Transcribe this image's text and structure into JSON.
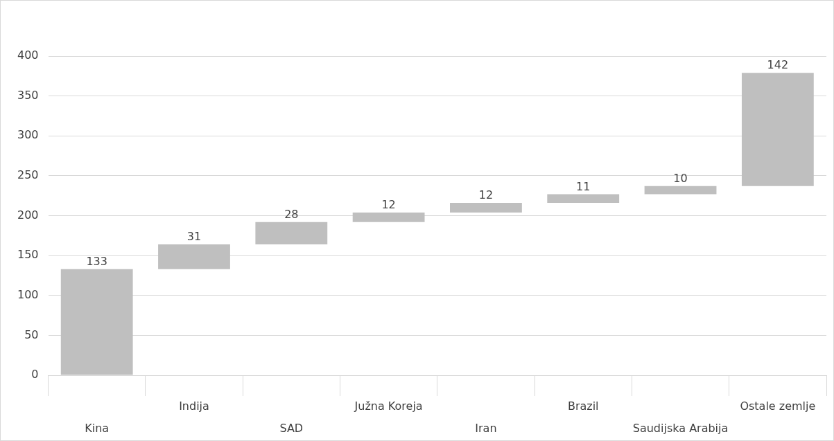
{
  "chart_data": {
    "type": "bar",
    "categories": [
      "Kina",
      "Indija",
      "SAD",
      "Južna Koreja",
      "Iran",
      "Brazil",
      "Saudijska Arabija",
      "Ostale zemlje"
    ],
    "values": [
      133,
      31,
      28,
      12,
      12,
      11,
      10,
      142
    ],
    "base": [
      0,
      133,
      164,
      192,
      204,
      216,
      227,
      237
    ],
    "color": "#bfbfbf",
    "ylim": [
      0,
      400
    ],
    "yticks": [
      0,
      50,
      100,
      150,
      200,
      250,
      300,
      350,
      400
    ],
    "grid": "y",
    "data_labels": true
  }
}
